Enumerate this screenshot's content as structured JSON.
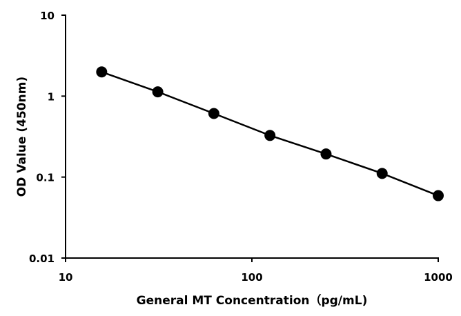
{
  "chart_data": {
    "type": "line",
    "title": "",
    "xlabel": "General MT Concentration（pg/mL)",
    "ylabel": "OD Value (450nm)",
    "x_scale": "log",
    "y_scale": "log",
    "xlim": [
      10,
      1000
    ],
    "ylim": [
      0.01,
      10
    ],
    "x_ticks": [
      "10",
      "100",
      "1000"
    ],
    "y_ticks": [
      "0.01",
      "0.1",
      "1",
      "10"
    ],
    "grid": false,
    "legend": "none",
    "series": [
      {
        "x": [
          15.625,
          31.25,
          62.5,
          125,
          250,
          500,
          1000
        ],
        "y": [
          1.99,
          1.13,
          0.61,
          0.327,
          0.193,
          0.111,
          0.059
        ],
        "color": "#000000",
        "marker": "circle"
      }
    ]
  }
}
